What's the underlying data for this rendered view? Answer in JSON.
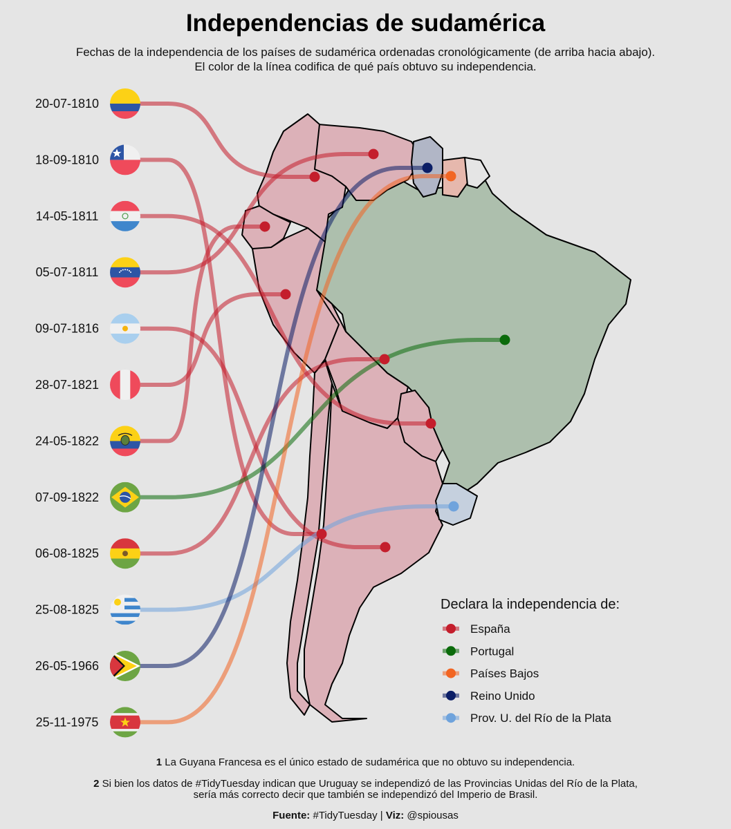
{
  "header": {
    "title": "Independencias de sudamérica",
    "subtitle_line1": "Fechas de la independencia de los países de sudamérica ordenadas cronológicamente (de arriba hacia abajo).",
    "subtitle_line2": "El color de la línea codifica de qué país obtuvo su independencia."
  },
  "legend": {
    "title": "Declara la independencia de:",
    "placement": "bottom-right, over the map"
  },
  "footer": {
    "note1_num": "1",
    "note1_text": "La Guyana Francesa es el único estado de sudamérica que no obtuvo su independencia.",
    "note2_num": "2",
    "note2_text_a": "Si bien los datos de #TidyTuesday indican que Uruguay se independizó de las Provincias Unidas del Río de la Plata,",
    "note2_text_b": "sería más correcto decir que también se independizó del Imperio de Brasil.",
    "source_label": "Fuente:",
    "source_value": "#TidyTuesday",
    "separator": "|",
    "viz_label": "Viz:",
    "viz_value": "@spiousas"
  },
  "chart_data": {
    "type": "map with curved links",
    "order": "chronological, top to bottom",
    "colonizers": [
      {
        "name": "España",
        "color": "#c41e2c"
      },
      {
        "name": "Portugal",
        "color": "#0b6b0b"
      },
      {
        "name": "Países Bajos",
        "color": "#f26522"
      },
      {
        "name": "Reino Unido",
        "color": "#0b1e66"
      },
      {
        "name": "Prov. U. del Río de la Plata",
        "color": "#6fa3dc"
      }
    ],
    "entries": [
      {
        "date": "20-07-1810",
        "flag": "colombia-flag",
        "from": "España"
      },
      {
        "date": "18-09-1810",
        "flag": "chile-flag",
        "from": "España"
      },
      {
        "date": "14-05-1811",
        "flag": "paraguay-flag",
        "from": "España"
      },
      {
        "date": "05-07-1811",
        "flag": "venezuela-flag",
        "from": "España"
      },
      {
        "date": "09-07-1816",
        "flag": "argentina-flag",
        "from": "España"
      },
      {
        "date": "28-07-1821",
        "flag": "peru-flag",
        "from": "España"
      },
      {
        "date": "24-05-1822",
        "flag": "ecuador-flag",
        "from": "España"
      },
      {
        "date": "07-09-1822",
        "flag": "brazil-flag",
        "from": "Portugal"
      },
      {
        "date": "06-08-1825",
        "flag": "bolivia-flag",
        "from": "España"
      },
      {
        "date": "25-08-1825",
        "flag": "uruguay-flag",
        "from": "Prov. U. del Río de la Plata"
      },
      {
        "date": "26-05-1966",
        "flag": "guyana-flag",
        "from": "Reino Unido"
      },
      {
        "date": "25-11-1975",
        "flag": "suriname-flag",
        "from": "Países Bajos"
      }
    ],
    "region_fill": {
      "spain": "#dcb1b8",
      "portugal": "#adbfad",
      "uk": "#b1b6c6",
      "netherlands": "#e6b8ad",
      "plata": "#c5d0de",
      "unclaimed": "#e5e5e5"
    }
  }
}
